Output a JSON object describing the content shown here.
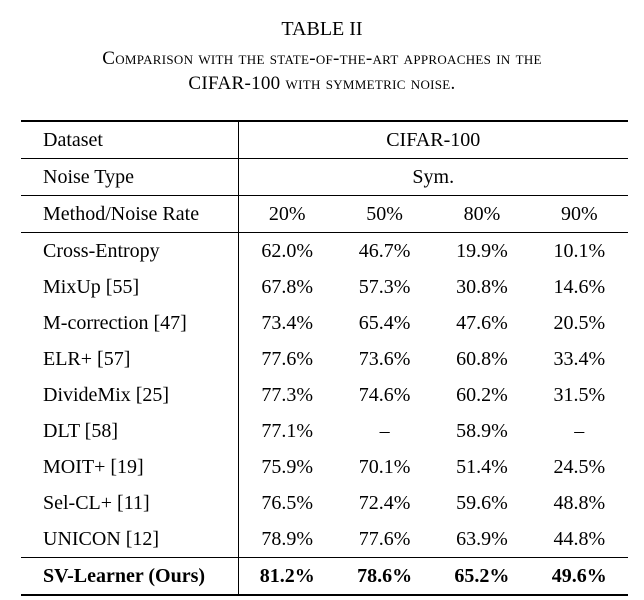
{
  "caption": {
    "label": "TABLE II",
    "lines": [
      "Comparison with the state-of-the-art approaches in the",
      "CIFAR-100 with symmetric noise."
    ]
  },
  "table": {
    "header": {
      "dataset_label": "Dataset",
      "dataset_value": "CIFAR-100",
      "noise_type_label": "Noise Type",
      "noise_type_value": "Sym.",
      "rate_label": "Method/Noise Rate",
      "rates": [
        "20%",
        "50%",
        "80%",
        "90%"
      ]
    },
    "rows": [
      {
        "method": "Cross-Entropy",
        "values": [
          "62.0%",
          "46.7%",
          "19.9%",
          "10.1%"
        ]
      },
      {
        "method": "MixUp [55]",
        "values": [
          "67.8%",
          "57.3%",
          "30.8%",
          "14.6%"
        ]
      },
      {
        "method": "M-correction [47]",
        "values": [
          "73.4%",
          "65.4%",
          "47.6%",
          "20.5%"
        ]
      },
      {
        "method": "ELR+ [57]",
        "values": [
          "77.6%",
          "73.6%",
          "60.8%",
          "33.4%"
        ]
      },
      {
        "method": "DivideMix [25]",
        "values": [
          "77.3%",
          "74.6%",
          "60.2%",
          "31.5%"
        ]
      },
      {
        "method": "DLT [58]",
        "values": [
          "77.1%",
          "–",
          "58.9%",
          "–"
        ]
      },
      {
        "method": "MOIT+ [19]",
        "values": [
          "75.9%",
          "70.1%",
          "51.4%",
          "24.5%"
        ]
      },
      {
        "method": "Sel-CL+ [11]",
        "values": [
          "76.5%",
          "72.4%",
          "59.6%",
          "48.8%"
        ]
      },
      {
        "method": "UNICON [12]",
        "values": [
          "78.9%",
          "77.6%",
          "63.9%",
          "44.8%"
        ]
      },
      {
        "method": "SV-Learner (Ours)",
        "values": [
          "81.2%",
          "78.6%",
          "65.2%",
          "49.6%"
        ]
      }
    ]
  }
}
